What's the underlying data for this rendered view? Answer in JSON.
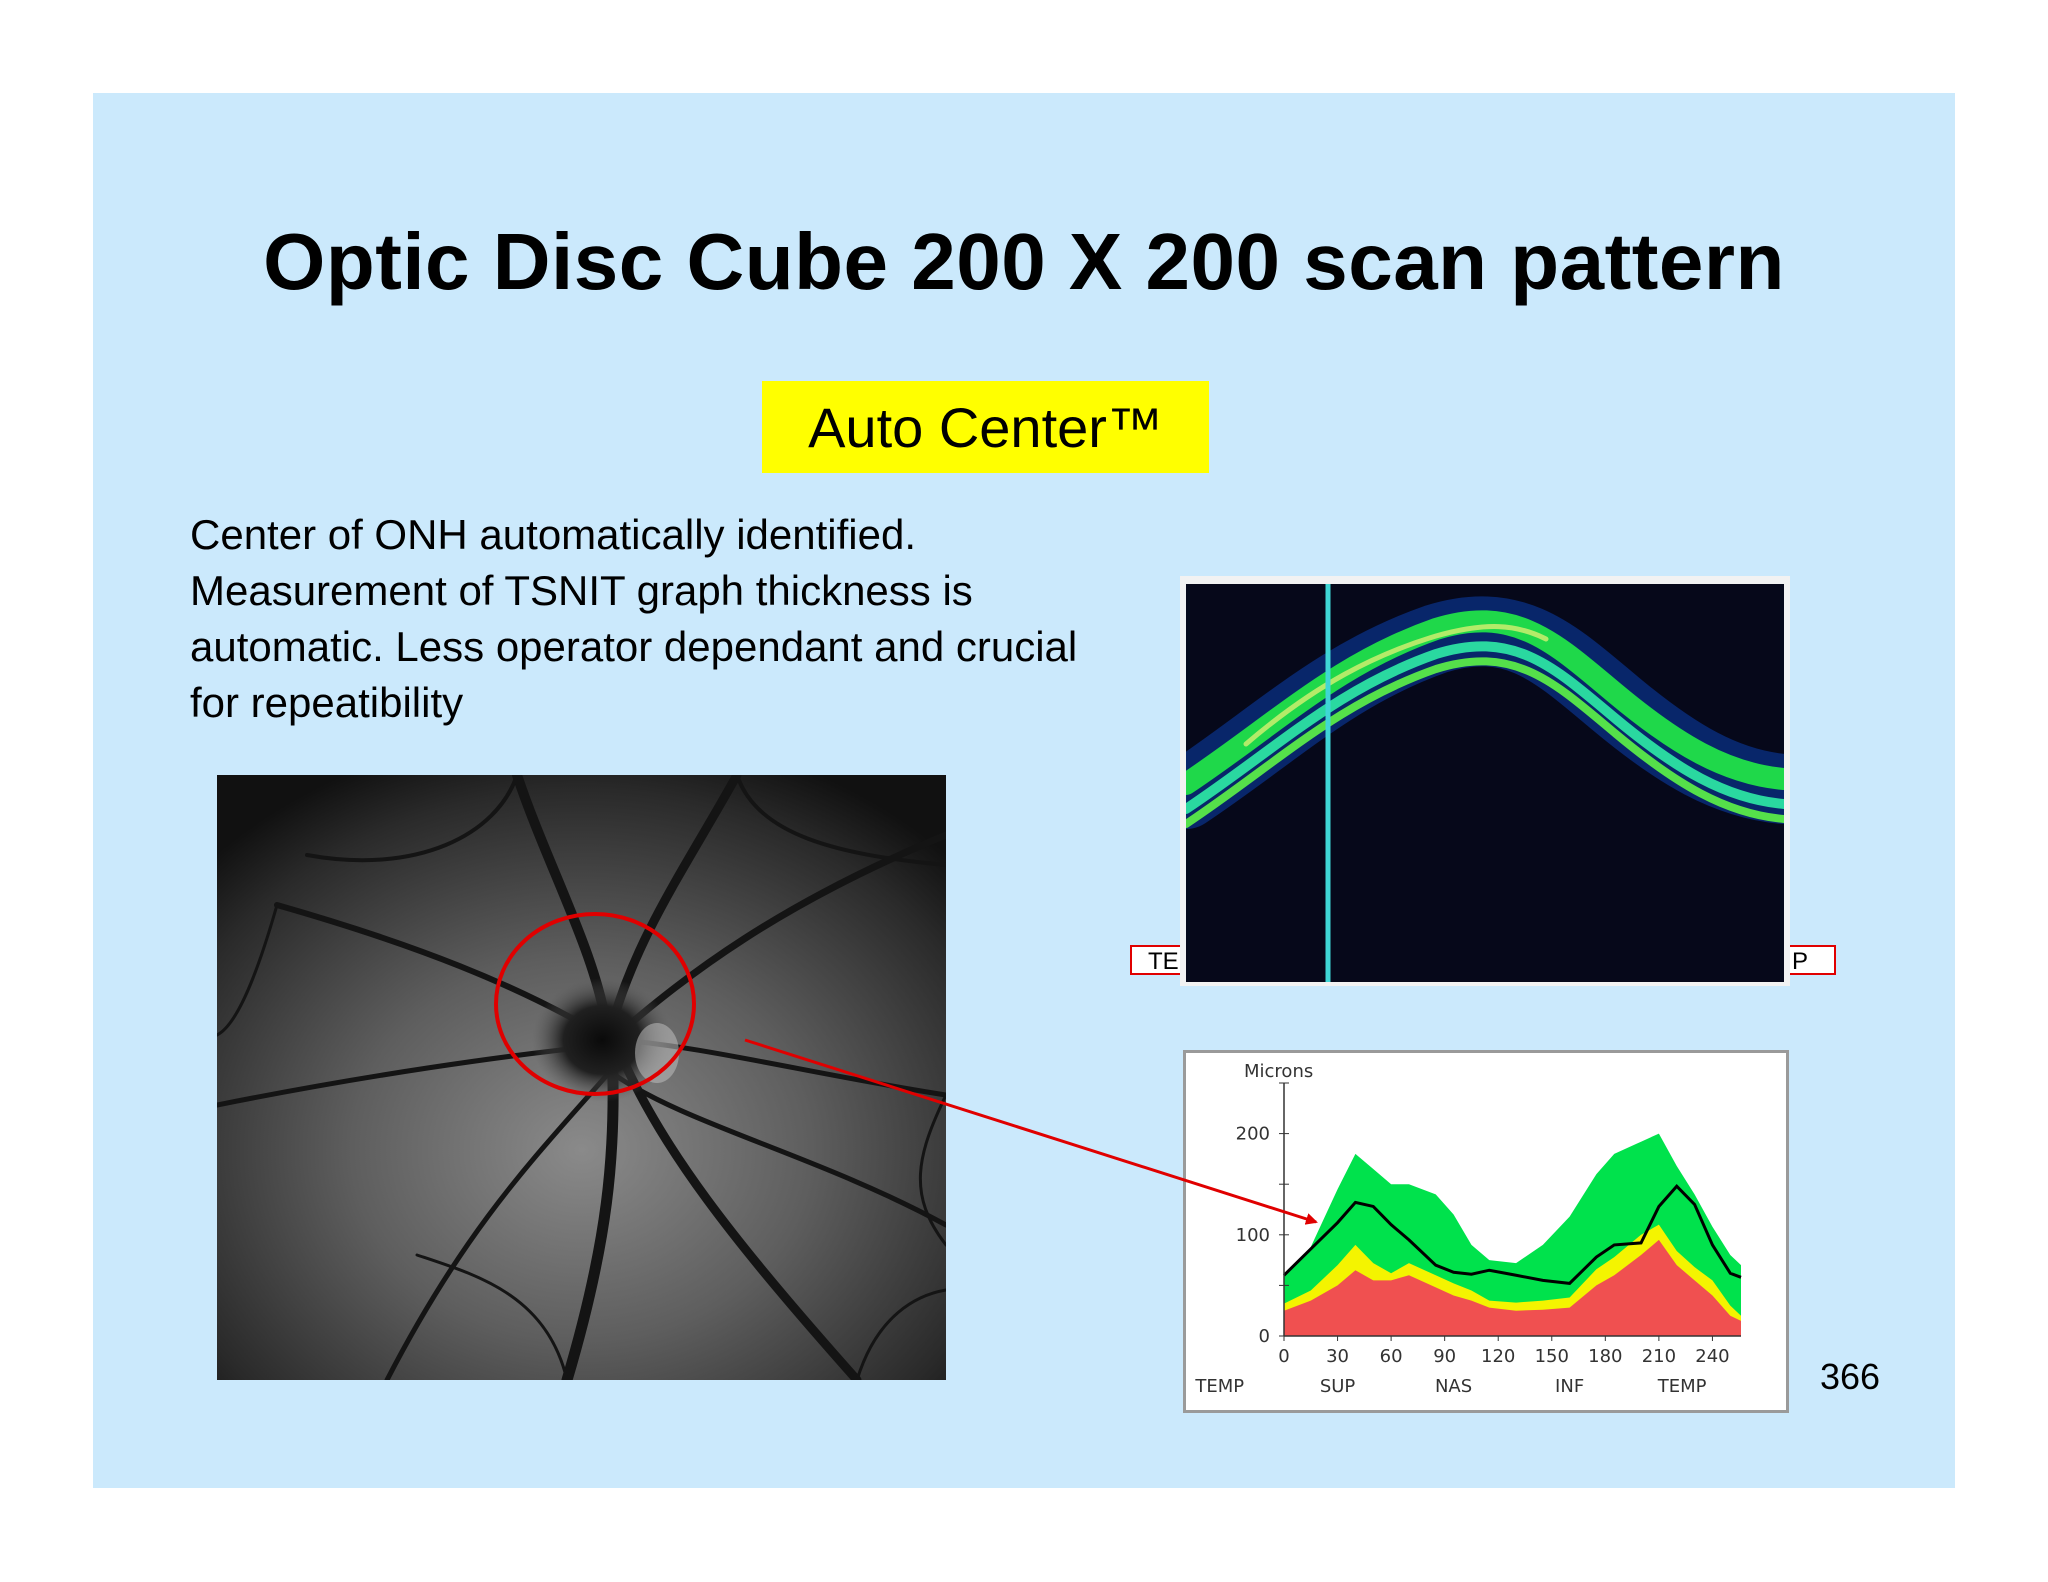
{
  "slide": {
    "title": "Optic Disc Cube 200 X 200 scan pattern",
    "badge": "Auto Center™",
    "body_lines": [
      "Center of ONH automatically identified.",
      "Measurement of TSNIT graph thickness is",
      "automatic. Less operator dependant and crucial",
      "for repeatibility"
    ],
    "page_number": "366",
    "bscan_left_tag": "TE",
    "bscan_right_tag": "P"
  },
  "colors": {
    "background": "#cbe9fc",
    "badge": "#ffff00",
    "annotation": "#e00000",
    "normal_band": "#00e24c",
    "borderline_band": "#f4f400",
    "abnormal_band": "#f05050"
  },
  "chart_data": {
    "type": "area",
    "title": "",
    "ylabel": "Microns",
    "xlabel": "",
    "ylim": [
      0,
      250
    ],
    "xlim": [
      0,
      256
    ],
    "yticks": [
      0,
      100,
      200
    ],
    "xticks": [
      0,
      30,
      60,
      90,
      120,
      150,
      180,
      210,
      240
    ],
    "region_labels": [
      {
        "label": "TEMP",
        "x": -36
      },
      {
        "label": "SUP",
        "x": 30
      },
      {
        "label": "NAS",
        "x": 95
      },
      {
        "label": "INF",
        "x": 160
      },
      {
        "label": "TEMP",
        "x": 223
      }
    ],
    "x": [
      0,
      15,
      30,
      40,
      50,
      60,
      70,
      85,
      95,
      105,
      115,
      130,
      145,
      160,
      175,
      185,
      200,
      210,
      220,
      230,
      240,
      250,
      256
    ],
    "series": [
      {
        "name": "",
        "style": "red_band",
        "values": [
          25,
          35,
          50,
          65,
          55,
          55,
          60,
          48,
          40,
          35,
          28,
          25,
          26,
          28,
          50,
          60,
          80,
          95,
          70,
          55,
          40,
          20,
          15
        ]
      },
      {
        "name": "",
        "style": "yellow_band",
        "values": [
          32,
          45,
          70,
          90,
          72,
          62,
          72,
          60,
          52,
          45,
          35,
          33,
          35,
          38,
          66,
          78,
          100,
          110,
          84,
          68,
          55,
          30,
          20
        ]
      },
      {
        "name": "",
        "style": "green_band",
        "values": [
          60,
          88,
          145,
          180,
          165,
          150,
          150,
          140,
          120,
          90,
          75,
          72,
          90,
          118,
          160,
          180,
          192,
          200,
          168,
          140,
          108,
          80,
          70
        ]
      },
      {
        "name": "",
        "style": "measured_line",
        "values": [
          60,
          86,
          112,
          132,
          128,
          110,
          95,
          70,
          63,
          61,
          65,
          60,
          55,
          52,
          78,
          90,
          92,
          128,
          148,
          130,
          90,
          62,
          58
        ]
      }
    ]
  }
}
